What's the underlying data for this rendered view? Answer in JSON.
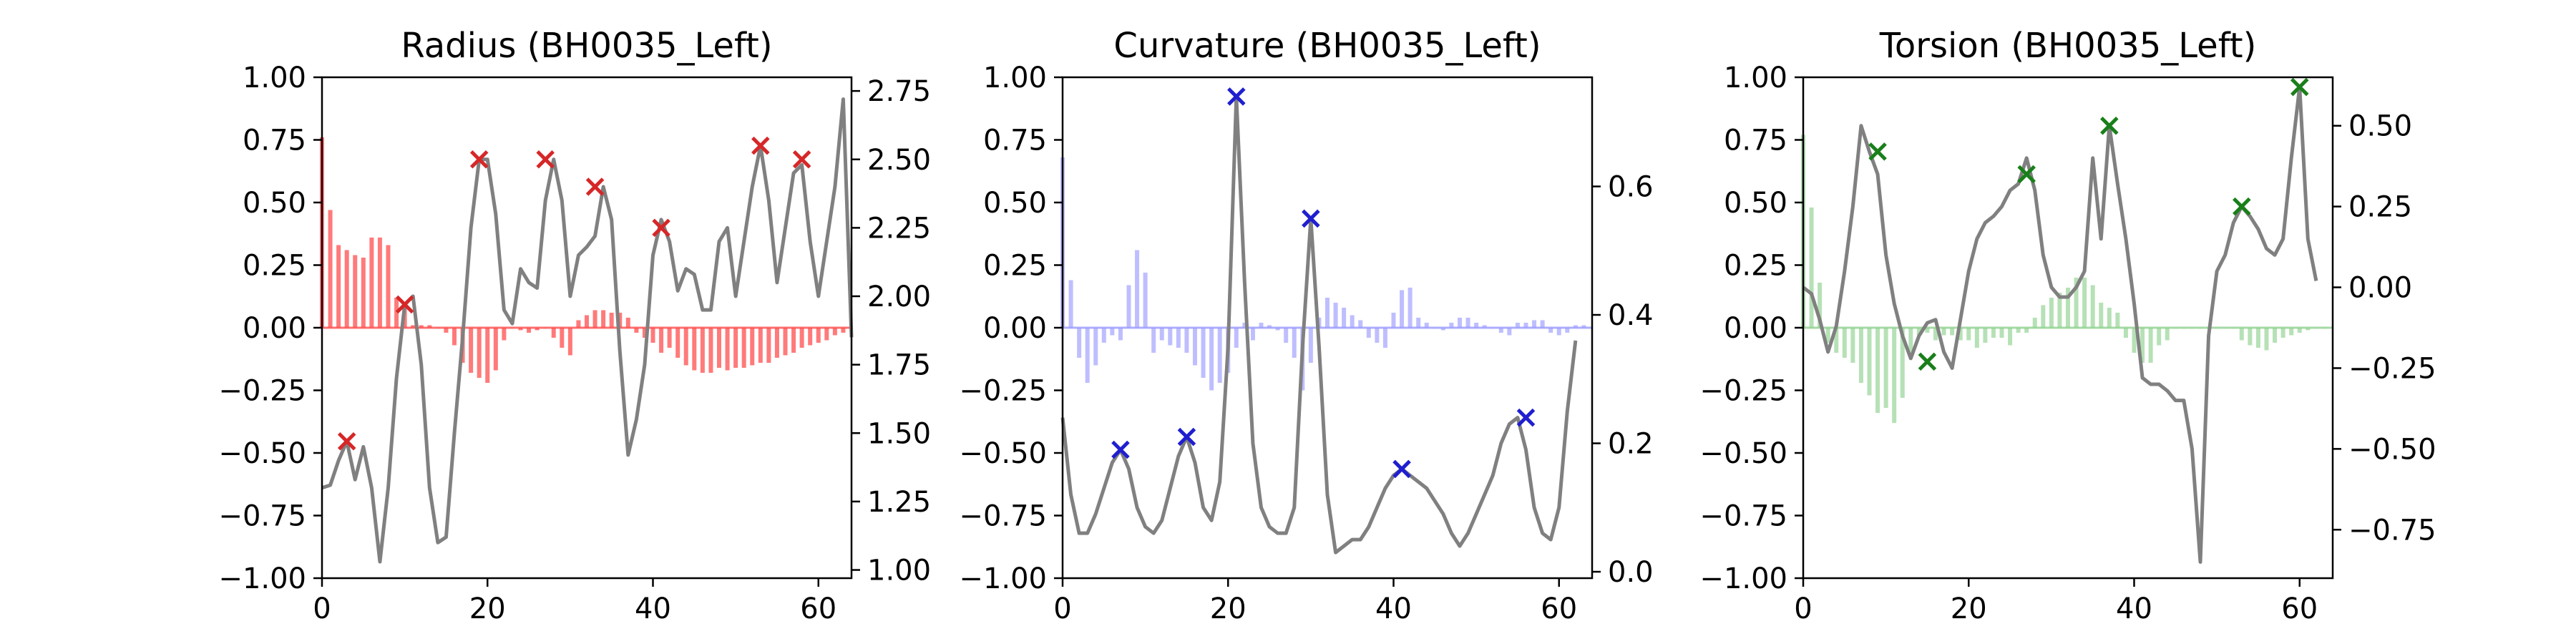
{
  "chart_data": [
    {
      "type": "bar+line",
      "title": "Radius (BH0035_Left)",
      "bar_color": "#ff4d4d",
      "marker_color": "#d62728",
      "line_color": "#808080",
      "xlim": [
        0,
        64
      ],
      "x_ticks": [
        0,
        20,
        40,
        60
      ],
      "ylim": [
        -1.0,
        1.0
      ],
      "y_ticks": [
        -1.0,
        -0.75,
        -0.5,
        -0.25,
        0.0,
        0.25,
        0.5,
        0.75,
        1.0
      ],
      "y_tick_labels": [
        "−1.00",
        "−0.75",
        "−0.50",
        "−0.25",
        "0.00",
        "0.25",
        "0.50",
        "0.75",
        "1.00"
      ],
      "y2lim": [
        0.97,
        2.8
      ],
      "y2_ticks": [
        1.0,
        1.25,
        1.5,
        1.75,
        2.0,
        2.25,
        2.5,
        2.75
      ],
      "y2_tick_labels": [
        "1.00",
        "1.25",
        "1.50",
        "1.75",
        "2.00",
        "2.25",
        "2.50",
        "2.75"
      ],
      "bars": [
        0.76,
        0.47,
        0.33,
        0.31,
        0.29,
        0.28,
        0.36,
        0.36,
        0.33,
        0.12,
        0.1,
        0.01,
        0.01,
        0.01,
        0.0,
        -0.02,
        -0.07,
        -0.14,
        -0.18,
        -0.2,
        -0.22,
        -0.17,
        -0.05,
        0.0,
        -0.01,
        -0.02,
        -0.01,
        0.0,
        -0.04,
        -0.08,
        -0.11,
        0.03,
        0.05,
        0.07,
        0.07,
        0.06,
        0.06,
        0.04,
        -0.02,
        -0.04,
        -0.06,
        -0.1,
        -0.08,
        -0.12,
        -0.15,
        -0.17,
        -0.18,
        -0.18,
        -0.16,
        -0.17,
        -0.16,
        -0.16,
        -0.15,
        -0.14,
        -0.14,
        -0.12,
        -0.11,
        -0.1,
        -0.08,
        -0.07,
        -0.06,
        -0.05,
        -0.03,
        -0.02
      ],
      "line": [
        1.3,
        1.31,
        1.4,
        1.47,
        1.33,
        1.45,
        1.3,
        1.03,
        1.3,
        1.7,
        1.97,
        2.0,
        1.75,
        1.3,
        1.1,
        1.12,
        1.5,
        1.85,
        2.25,
        2.5,
        2.5,
        2.3,
        1.95,
        1.9,
        2.1,
        2.05,
        2.03,
        2.35,
        2.5,
        2.35,
        2.0,
        2.15,
        2.18,
        2.22,
        2.4,
        2.28,
        1.8,
        1.42,
        1.55,
        1.75,
        2.15,
        2.28,
        2.2,
        2.02,
        2.1,
        2.08,
        1.95,
        1.95,
        2.2,
        2.25,
        2.0,
        2.2,
        2.4,
        2.55,
        2.35,
        2.05,
        2.25,
        2.45,
        2.48,
        2.2,
        2.0,
        2.2,
        2.4,
        2.72,
        1.85
      ],
      "markers": [
        {
          "x": 3,
          "y": 1.47
        },
        {
          "x": 10,
          "y": 1.97
        },
        {
          "x": 19,
          "y": 2.5
        },
        {
          "x": 27,
          "y": 2.5
        },
        {
          "x": 33,
          "y": 2.4
        },
        {
          "x": 41,
          "y": 2.25
        },
        {
          "x": 53,
          "y": 2.55
        },
        {
          "x": 58,
          "y": 2.5
        }
      ]
    },
    {
      "type": "bar+line",
      "title": "Curvature (BH0035_Left)",
      "bar_color": "#9b9bff",
      "marker_color": "#1f1fcf",
      "line_color": "#808080",
      "xlim": [
        0,
        64
      ],
      "x_ticks": [
        0,
        20,
        40,
        60
      ],
      "ylim": [
        -1.0,
        1.0
      ],
      "y_ticks": [
        -1.0,
        -0.75,
        -0.5,
        -0.25,
        0.0,
        0.25,
        0.5,
        0.75,
        1.0
      ],
      "y_tick_labels": [
        "−1.00",
        "−0.75",
        "−0.50",
        "−0.25",
        "0.00",
        "0.25",
        "0.50",
        "0.75",
        "1.00"
      ],
      "y2lim": [
        -0.01,
        0.77
      ],
      "y2_ticks": [
        0.0,
        0.2,
        0.4,
        0.6
      ],
      "y2_tick_labels": [
        "0.0",
        "0.2",
        "0.4",
        "0.6"
      ],
      "bars": [
        0.68,
        0.19,
        -0.12,
        -0.22,
        -0.15,
        -0.06,
        -0.03,
        -0.05,
        0.17,
        0.31,
        0.22,
        -0.1,
        -0.05,
        -0.07,
        -0.08,
        -0.1,
        -0.15,
        -0.2,
        -0.25,
        -0.22,
        -0.18,
        -0.08,
        0.02,
        -0.05,
        0.02,
        0.01,
        -0.01,
        -0.06,
        -0.12,
        -0.25,
        -0.14,
        0.04,
        0.12,
        0.1,
        0.08,
        0.05,
        0.03,
        -0.04,
        -0.06,
        -0.08,
        0.06,
        0.15,
        0.16,
        0.04,
        0.02,
        0.0,
        -0.01,
        0.02,
        0.04,
        0.04,
        0.02,
        0.01,
        0.0,
        -0.02,
        -0.03,
        0.02,
        0.02,
        0.03,
        0.03,
        -0.02,
        -0.03,
        -0.02,
        0.01,
        0.01
      ],
      "line": [
        0.24,
        0.12,
        0.06,
        0.06,
        0.09,
        0.13,
        0.17,
        0.19,
        0.16,
        0.1,
        0.07,
        0.06,
        0.08,
        0.13,
        0.18,
        0.21,
        0.17,
        0.1,
        0.08,
        0.14,
        0.35,
        0.74,
        0.45,
        0.2,
        0.1,
        0.07,
        0.06,
        0.06,
        0.1,
        0.35,
        0.55,
        0.35,
        0.12,
        0.03,
        0.04,
        0.05,
        0.05,
        0.07,
        0.1,
        0.13,
        0.15,
        0.16,
        0.15,
        0.14,
        0.13,
        0.11,
        0.09,
        0.06,
        0.04,
        0.06,
        0.09,
        0.12,
        0.15,
        0.2,
        0.23,
        0.24,
        0.19,
        0.1,
        0.06,
        0.05,
        0.1,
        0.25,
        0.36
      ],
      "markers": [
        {
          "x": 7,
          "y": 0.19
        },
        {
          "x": 15,
          "y": 0.21
        },
        {
          "x": 21,
          "y": 0.74
        },
        {
          "x": 30,
          "y": 0.55
        },
        {
          "x": 41,
          "y": 0.16
        },
        {
          "x": 56,
          "y": 0.24
        }
      ]
    },
    {
      "type": "bar+line",
      "title": "Torsion (BH0035_Left)",
      "bar_color": "#8fd18f",
      "marker_color": "#1a7f1a",
      "line_color": "#808080",
      "xlim": [
        0,
        64
      ],
      "x_ticks": [
        0,
        20,
        40,
        60
      ],
      "ylim": [
        -1.0,
        1.0
      ],
      "y_ticks": [
        -1.0,
        -0.75,
        -0.5,
        -0.25,
        0.0,
        0.25,
        0.5,
        0.75,
        1.0
      ],
      "y_tick_labels": [
        "−1.00",
        "−0.75",
        "−0.50",
        "−0.25",
        "0.00",
        "0.25",
        "0.50",
        "0.75",
        "1.00"
      ],
      "y2lim": [
        -0.9,
        0.65
      ],
      "y2_ticks": [
        -0.75,
        -0.5,
        -0.25,
        0.0,
        0.25,
        0.5
      ],
      "y2_tick_labels": [
        "−0.75",
        "−0.50",
        "−0.25",
        "0.00",
        "0.25",
        "0.50"
      ],
      "bars": [
        0.77,
        0.48,
        0.18,
        -0.06,
        -0.1,
        -0.12,
        -0.14,
        -0.22,
        -0.27,
        -0.34,
        -0.32,
        -0.38,
        -0.28,
        -0.1,
        -0.03,
        -0.02,
        -0.05,
        -0.03,
        -0.03,
        -0.05,
        -0.05,
        -0.08,
        -0.06,
        -0.04,
        -0.04,
        -0.07,
        -0.02,
        -0.02,
        0.04,
        0.09,
        0.12,
        0.14,
        0.16,
        0.2,
        0.2,
        0.17,
        0.1,
        0.08,
        0.06,
        -0.04,
        -0.1,
        -0.14,
        -0.14,
        -0.07,
        -0.05,
        0.0,
        0.0,
        0.0,
        0.0,
        0.0,
        0.0,
        0.0,
        0.0,
        -0.05,
        -0.07,
        -0.08,
        -0.09,
        -0.06,
        -0.04,
        -0.03,
        -0.02,
        -0.01,
        0.0,
        0.0
      ],
      "line": [
        0.0,
        -0.02,
        -0.1,
        -0.2,
        -0.12,
        0.05,
        0.25,
        0.5,
        0.42,
        0.35,
        0.1,
        -0.05,
        -0.15,
        -0.22,
        -0.15,
        -0.11,
        -0.1,
        -0.2,
        -0.25,
        -0.1,
        0.05,
        0.15,
        0.2,
        0.22,
        0.25,
        0.3,
        0.32,
        0.4,
        0.3,
        0.1,
        0.0,
        -0.03,
        -0.03,
        0.0,
        0.05,
        0.4,
        0.15,
        0.5,
        0.32,
        0.15,
        -0.05,
        -0.28,
        -0.3,
        -0.3,
        -0.32,
        -0.35,
        -0.35,
        -0.5,
        -0.85,
        -0.15,
        0.05,
        0.1,
        0.2,
        0.25,
        0.22,
        0.18,
        0.12,
        0.1,
        0.15,
        0.4,
        0.62,
        0.15,
        0.02
      ],
      "markers": [
        {
          "x": 9,
          "y": 0.42
        },
        {
          "x": 15,
          "y": -0.23
        },
        {
          "x": 27,
          "y": 0.35
        },
        {
          "x": 37,
          "y": 0.5
        },
        {
          "x": 53,
          "y": 0.25
        },
        {
          "x": 60,
          "y": 0.62
        }
      ]
    }
  ]
}
